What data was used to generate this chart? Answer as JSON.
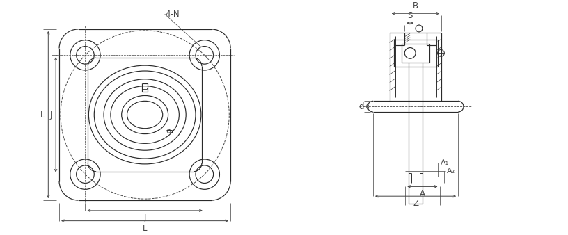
{
  "bg_color": "#ffffff",
  "line_color": "#2a2a2a",
  "dim_color": "#444444",
  "labels": {
    "four_N": "4-N",
    "L_left": "L",
    "J_left": "J",
    "J_bottom": "J",
    "L_bottom": "L",
    "B": "B",
    "S": "S",
    "d": "d",
    "A1": "A₁",
    "A2": "A₂",
    "A": "A",
    "Z": "Z"
  },
  "font_size": 8.5,
  "lw": 0.85
}
